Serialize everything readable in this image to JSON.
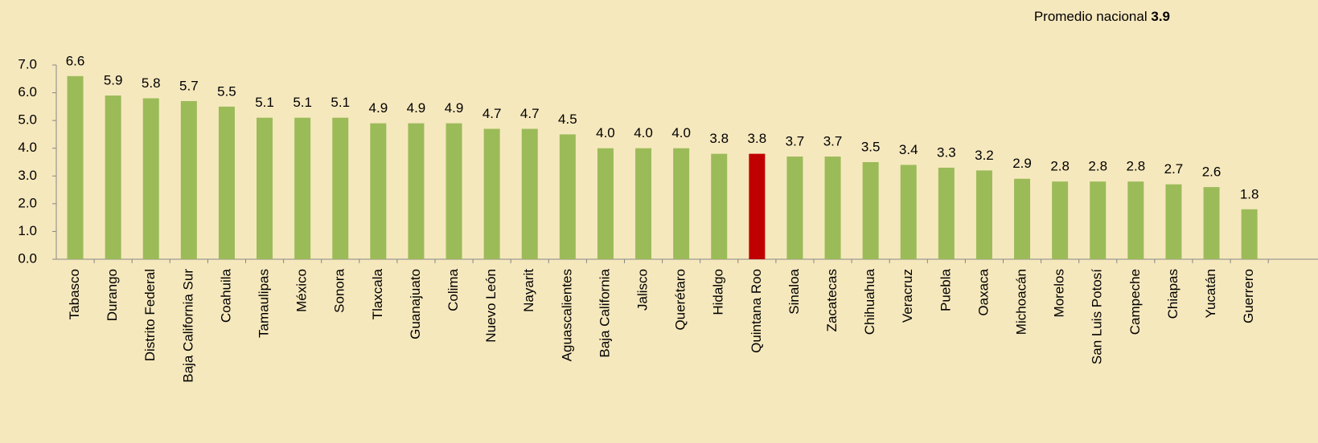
{
  "chart_data": {
    "type": "bar",
    "annotation": {
      "text": "Promedio nacional",
      "value": 3.9
    },
    "categories": [
      "Tabasco",
      "Durango",
      "Distrito Federal",
      "Baja California Sur",
      "Coahuila",
      "Tamaulipas",
      "México",
      "Sonora",
      "Tlaxcala",
      "Guanajuato",
      "Colima",
      "Nuevo León",
      "Nayarit",
      "Aguascalientes",
      "Baja California",
      "Jalisco",
      "Querétaro",
      "Hidalgo",
      "Quintana Roo",
      "Sinaloa",
      "Zacatecas",
      "Chihuahua",
      "Veracruz",
      "Puebla",
      "Oaxaca",
      "Michoacán",
      "Morelos",
      "San Luis Potosí",
      "Campeche",
      "Chiapas",
      "Yucatán",
      "Guerrero"
    ],
    "values": [
      6.6,
      5.9,
      5.8,
      5.7,
      5.5,
      5.1,
      5.1,
      5.1,
      4.9,
      4.9,
      4.9,
      4.7,
      4.7,
      4.5,
      4.0,
      4.0,
      4.0,
      3.8,
      3.8,
      3.7,
      3.7,
      3.5,
      3.4,
      3.3,
      3.2,
      2.9,
      2.8,
      2.8,
      2.8,
      2.7,
      2.6,
      1.8
    ],
    "value_labels": [
      "6.6",
      "5.9",
      "5.8",
      "5.7",
      "5.5",
      "5.1",
      "5.1",
      "5.1",
      "4.9",
      "4.9",
      "4.9",
      "4.7",
      "4.7",
      "4.5",
      "4.0",
      "4.0",
      "4.0",
      "3.8",
      "3.8",
      "3.7",
      "3.7",
      "3.5",
      "3.4",
      "3.3",
      "3.2",
      "2.9",
      "2.8",
      "2.8",
      "2.8",
      "2.7",
      "2.6",
      "1.8"
    ],
    "colors": [
      "#9bbb59",
      "#9bbb59",
      "#9bbb59",
      "#9bbb59",
      "#9bbb59",
      "#9bbb59",
      "#9bbb59",
      "#9bbb59",
      "#9bbb59",
      "#9bbb59",
      "#9bbb59",
      "#9bbb59",
      "#9bbb59",
      "#9bbb59",
      "#9bbb59",
      "#9bbb59",
      "#9bbb59",
      "#9bbb59",
      "#c00000",
      "#9bbb59",
      "#9bbb59",
      "#9bbb59",
      "#9bbb59",
      "#9bbb59",
      "#9bbb59",
      "#9bbb59",
      "#9bbb59",
      "#9bbb59",
      "#9bbb59",
      "#9bbb59",
      "#9bbb59",
      "#9bbb59"
    ],
    "ylim": [
      0,
      7
    ],
    "yticks": [
      {
        "value": 0,
        "label": "0.0"
      },
      {
        "value": 1,
        "label": "1.0"
      },
      {
        "value": 2,
        "label": "2.0"
      },
      {
        "value": 3,
        "label": "3.0"
      },
      {
        "value": 4,
        "label": "4.0"
      },
      {
        "value": 5,
        "label": "5.0"
      },
      {
        "value": 6,
        "label": "6.0"
      },
      {
        "value": 7,
        "label": "7.0"
      }
    ],
    "grid": false
  }
}
